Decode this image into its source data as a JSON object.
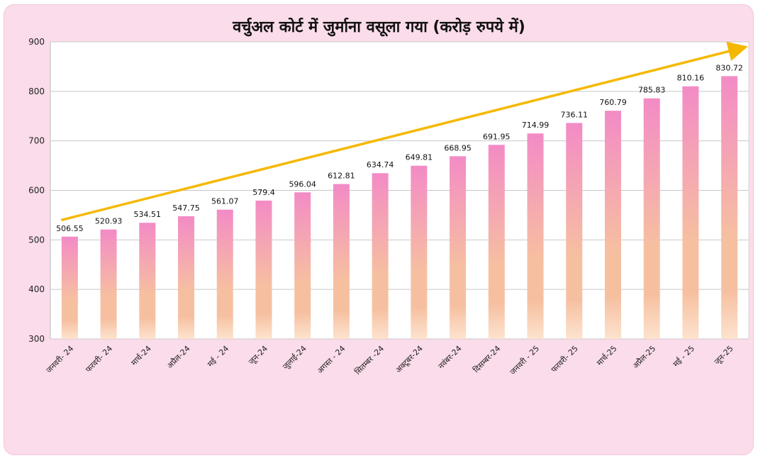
{
  "chart_data": {
    "type": "bar",
    "title": "वर्चुअल कोर्ट में जुर्माना वसूला गया (करोड़ रुपये में)",
    "xlabel": "",
    "ylabel": "",
    "ylim": [
      300,
      900
    ],
    "yticks": [
      300,
      400,
      500,
      600,
      700,
      800,
      900
    ],
    "grid": true,
    "legend": "none",
    "trend_arrow": true,
    "colors": {
      "bar_top": "#f38bc6",
      "bar_bottom": "#fde3cf",
      "bar_mid": "#f6c0a0",
      "arrow": "#f5b800",
      "background": "#fbdcea"
    },
    "categories": [
      "जनवरी- 24",
      "फरवरी- 24",
      "मार्च-24",
      "अप्रैल-24",
      "मई - 24",
      "जून-24",
      "जुलाई-24",
      "अगस्त - 24",
      "सितम्बर -24",
      "अक्टूबर-24",
      "नवंबर-24",
      "दिसम्बर-24",
      "जनवरी - 25",
      "फरवरी- 25",
      "मार्च-25",
      "अप्रैल-25",
      "मई - 25",
      "जून-25"
    ],
    "values": [
      506.55,
      520.93,
      534.51,
      547.75,
      561.07,
      579.4,
      596.04,
      612.81,
      634.74,
      649.81,
      668.95,
      691.95,
      714.99,
      736.11,
      760.79,
      785.83,
      810.16,
      830.72
    ]
  }
}
